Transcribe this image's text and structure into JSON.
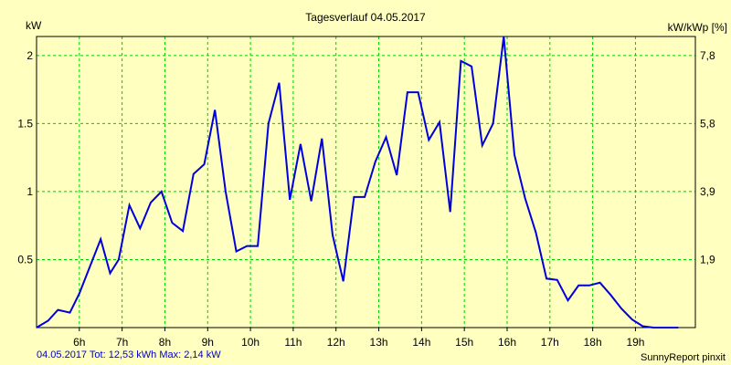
{
  "chart_data": {
    "type": "line",
    "title": "Tagesverlauf 04.05.2017",
    "ylabel_left": "kW",
    "ylabel_right": "kW/kWp [%]",
    "x_ticks": [
      "6h",
      "7h",
      "8h",
      "9h",
      "10h",
      "11h",
      "12h",
      "13h",
      "14h",
      "15h",
      "16h",
      "17h",
      "18h",
      "19h"
    ],
    "x_tick_hours": [
      6,
      7,
      8,
      9,
      10,
      11,
      12,
      13,
      14,
      15,
      16,
      17,
      18,
      19
    ],
    "y_ticks_left": [
      "0.5",
      "1",
      "1.5",
      "2"
    ],
    "y_tick_values_left": [
      0.5,
      1,
      1.5,
      2
    ],
    "y_ticks_right": [
      "1,9",
      "3,9",
      "5,8",
      "7,8"
    ],
    "xlim": [
      5.0,
      20.4
    ],
    "ylim": [
      0,
      2.14
    ],
    "grid": true,
    "series": [
      {
        "color": "#0000dd",
        "x": [
          5.0,
          5.27,
          5.5,
          5.78,
          6.0,
          6.25,
          6.5,
          6.72,
          6.92,
          7.17,
          7.42,
          7.67,
          7.92,
          8.17,
          8.42,
          8.67,
          8.92,
          9.17,
          9.42,
          9.67,
          9.92,
          10.17,
          10.42,
          10.67,
          10.92,
          11.17,
          11.42,
          11.67,
          11.92,
          12.17,
          12.42,
          12.67,
          12.92,
          13.17,
          13.42,
          13.67,
          13.92,
          14.17,
          14.42,
          14.67,
          14.92,
          15.17,
          15.42,
          15.67,
          15.92,
          16.17,
          16.42,
          16.67,
          16.92,
          17.17,
          17.42,
          17.67,
          17.92,
          18.17,
          18.42,
          18.67,
          18.92,
          19.17,
          19.42,
          19.67,
          20.0
        ],
        "values": [
          0.0,
          0.05,
          0.13,
          0.11,
          0.25,
          0.45,
          0.65,
          0.4,
          0.5,
          0.9,
          0.73,
          0.92,
          1.0,
          0.77,
          0.71,
          1.13,
          1.2,
          1.6,
          1.0,
          0.56,
          0.6,
          0.6,
          1.5,
          1.8,
          0.94,
          1.35,
          0.93,
          1.39,
          0.68,
          0.34,
          0.96,
          0.96,
          1.22,
          1.4,
          1.12,
          1.73,
          1.73,
          1.38,
          1.51,
          0.85,
          1.96,
          1.92,
          1.34,
          1.5,
          2.14,
          1.27,
          0.95,
          0.7,
          0.36,
          0.35,
          0.2,
          0.31,
          0.31,
          0.33,
          0.24,
          0.14,
          0.06,
          0.01,
          0.0,
          0.0,
          0.0
        ]
      }
    ]
  },
  "footer": {
    "summary": "04.05.2017 Tot: 12,53 kWh Max: 2,14 kW",
    "brand": "SunnyReport pinxit"
  },
  "colors": {
    "background": "#ffffc0",
    "grid": "#00cc00",
    "line": "#0000dd",
    "footer_text": "#0000cc"
  }
}
